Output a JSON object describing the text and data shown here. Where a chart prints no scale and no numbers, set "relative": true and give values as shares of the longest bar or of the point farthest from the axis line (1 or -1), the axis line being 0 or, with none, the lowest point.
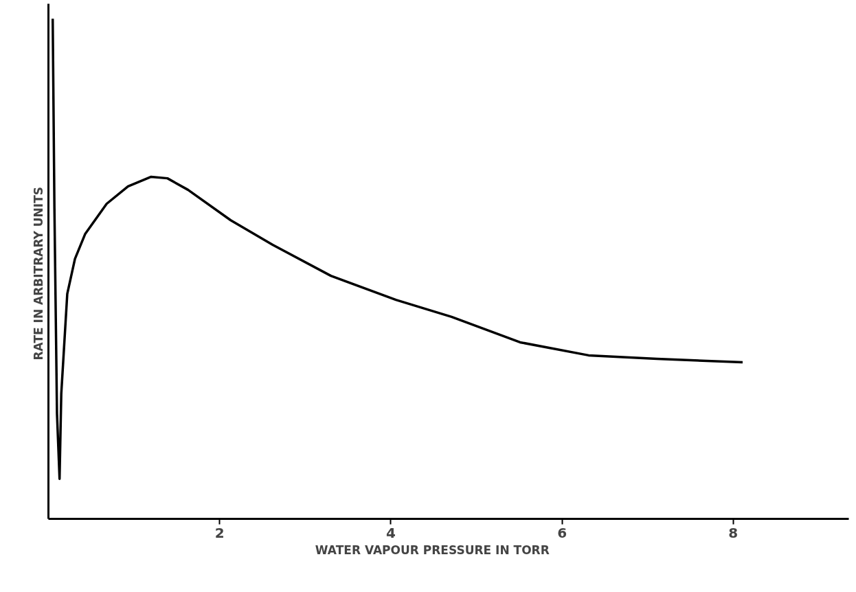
{
  "chart_data": {
    "type": "line",
    "relative": true,
    "xlabel": "WATER   VAPOUR   PRESSURE   IN   TORR",
    "ylabel": "RATE   IN   ARBITRARY   UNITS",
    "xlim": [
      0,
      9.35
    ],
    "xticks": [
      2,
      4,
      6,
      8
    ],
    "grid": false,
    "marker": "none",
    "line_style": "solid",
    "series": [
      {
        "color": "#000000",
        "x": [
          0.05,
          0.07,
          0.1,
          0.13,
          0.15,
          0.22,
          0.31,
          0.43,
          0.68,
          0.93,
          1.2,
          1.39,
          1.63,
          2.13,
          2.62,
          3.3,
          4.06,
          4.71,
          5.51,
          6.31,
          7.11,
          8.11
        ],
        "values": [
          1.0,
          0.62,
          0.21,
          0.08,
          0.25,
          0.45,
          0.52,
          0.57,
          0.63,
          0.665,
          0.684,
          0.681,
          0.658,
          0.597,
          0.548,
          0.486,
          0.438,
          0.404,
          0.353,
          0.327,
          0.32,
          0.313
        ]
      }
    ]
  }
}
